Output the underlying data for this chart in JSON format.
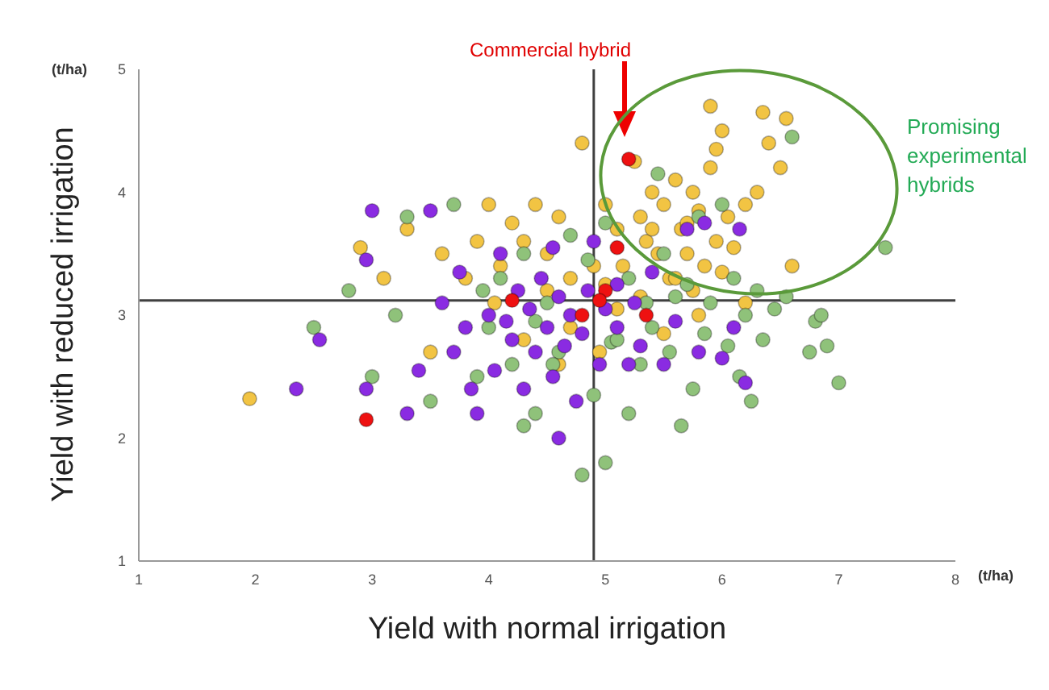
{
  "chart_data": {
    "type": "scatter",
    "xlabel": "Yield with normal irrigation",
    "ylabel": "Yield with reduced irrigation",
    "annotations": [
      "(t/ha)",
      "(t/ha)",
      "Commercial hybrid",
      "Promising experimental hybrids"
    ],
    "xlim": [
      1,
      8
    ],
    "xticks": [
      1,
      2,
      3,
      4,
      5,
      6,
      7,
      8
    ],
    "ylim": [
      1,
      5
    ],
    "yticks": [
      1,
      2,
      3,
      4,
      5
    ],
    "grid": false,
    "legend": false,
    "marker": "circle",
    "ref_lines": [
      {
        "axis": "x",
        "value": 4.9,
        "color": "#404040"
      },
      {
        "axis": "y",
        "value": 3.12,
        "color": "#404040"
      }
    ],
    "series": [
      {
        "color": "#f2c443",
        "x": [
          1.95,
          2.9,
          3.1,
          3.3,
          3.6,
          3.8,
          3.9,
          4.0,
          4.1,
          4.2,
          4.3,
          4.4,
          4.5,
          4.6,
          4.7,
          4.8,
          4.9,
          5.0,
          5.1,
          5.3,
          5.35,
          5.4,
          5.45,
          5.5,
          5.55,
          5.6,
          5.65,
          5.7,
          5.75,
          5.8,
          5.85,
          5.9,
          5.95,
          6.0,
          6.05,
          6.1,
          6.2,
          6.3,
          6.35,
          6.55,
          6.5,
          6.6,
          6.2,
          5.9,
          5.95,
          5.6,
          5.3,
          5.0,
          4.7,
          4.5,
          4.3,
          4.6,
          5.8,
          5.5,
          5.25,
          5.4,
          5.7,
          5.75,
          5.15,
          4.95,
          3.5,
          4.05,
          6.0,
          6.4,
          5.1
        ],
        "values": [
          2.32,
          3.55,
          3.3,
          3.7,
          3.5,
          3.3,
          3.6,
          3.9,
          3.4,
          3.75,
          3.6,
          3.9,
          3.5,
          3.8,
          3.3,
          4.4,
          3.4,
          3.9,
          3.7,
          3.8,
          3.6,
          4.0,
          3.5,
          3.9,
          3.3,
          4.1,
          3.7,
          3.5,
          4.0,
          3.85,
          3.4,
          4.2,
          3.6,
          4.5,
          3.8,
          3.55,
          3.9,
          4.0,
          4.65,
          4.6,
          4.2,
          3.4,
          3.1,
          4.7,
          4.35,
          3.3,
          3.15,
          3.25,
          2.9,
          3.2,
          2.8,
          2.6,
          3.0,
          2.85,
          4.25,
          3.7,
          3.75,
          3.2,
          3.4,
          2.7,
          2.7,
          3.1,
          3.35,
          4.4,
          3.05
        ]
      },
      {
        "color": "#8fc27a",
        "x": [
          2.5,
          2.8,
          3.0,
          3.2,
          3.3,
          3.5,
          3.7,
          3.9,
          4.0,
          4.1,
          4.2,
          4.3,
          4.4,
          4.5,
          4.6,
          4.7,
          4.8,
          4.9,
          5.0,
          5.05,
          5.1,
          5.2,
          5.3,
          5.35,
          5.4,
          5.5,
          5.55,
          5.6,
          5.7,
          5.75,
          5.8,
          5.85,
          5.9,
          6.0,
          6.05,
          6.1,
          6.15,
          6.2,
          6.3,
          6.35,
          6.45,
          6.55,
          6.6,
          6.75,
          6.8,
          6.85,
          6.9,
          7.4,
          7.0,
          5.65,
          4.55,
          5.45,
          4.85,
          3.95,
          5.2,
          4.4,
          6.25,
          5.0,
          4.3
        ],
        "values": [
          2.9,
          3.2,
          2.5,
          3.0,
          3.8,
          2.3,
          3.9,
          2.5,
          2.9,
          3.3,
          2.6,
          3.5,
          2.2,
          3.1,
          2.7,
          3.65,
          1.7,
          2.35,
          1.8,
          2.78,
          2.8,
          3.3,
          2.6,
          3.1,
          2.9,
          3.5,
          2.7,
          3.15,
          3.25,
          2.4,
          3.8,
          2.85,
          3.1,
          3.9,
          2.75,
          3.3,
          2.5,
          3.0,
          3.2,
          2.8,
          3.05,
          3.15,
          4.45,
          2.7,
          2.95,
          3.0,
          2.75,
          3.55,
          2.45,
          2.1,
          2.6,
          4.15,
          3.45,
          3.2,
          2.2,
          2.95,
          2.3,
          3.75,
          2.1
        ]
      },
      {
        "color": "#8a2be2",
        "x": [
          2.35,
          2.55,
          2.95,
          2.95,
          3.0,
          3.3,
          3.5,
          3.6,
          3.7,
          3.8,
          3.9,
          4.0,
          4.05,
          4.1,
          4.2,
          4.25,
          4.3,
          4.35,
          4.4,
          4.45,
          4.5,
          4.55,
          4.6,
          4.65,
          4.7,
          4.75,
          4.8,
          4.85,
          4.9,
          4.95,
          5.0,
          5.1,
          5.2,
          5.25,
          5.3,
          5.4,
          5.5,
          5.6,
          5.7,
          5.8,
          5.85,
          6.0,
          6.1,
          6.15,
          6.2,
          3.4,
          3.85,
          4.6,
          4.15,
          4.55,
          5.1,
          3.75
        ],
        "values": [
          2.4,
          2.8,
          2.4,
          3.45,
          3.85,
          2.2,
          3.85,
          3.1,
          2.7,
          2.9,
          2.2,
          3.0,
          2.55,
          3.5,
          2.8,
          3.2,
          2.4,
          3.05,
          2.7,
          3.3,
          2.9,
          2.5,
          3.15,
          2.75,
          3.0,
          2.3,
          2.85,
          3.2,
          3.6,
          2.6,
          3.05,
          2.9,
          2.6,
          3.1,
          2.75,
          3.35,
          2.6,
          2.95,
          3.7,
          2.7,
          3.75,
          2.65,
          2.9,
          3.7,
          2.45,
          2.55,
          2.4,
          2.0,
          2.95,
          3.55,
          3.25,
          3.35
        ]
      },
      {
        "color": "#ee1111",
        "x": [
          5.2,
          2.95,
          4.2,
          4.8,
          5.0,
          5.1,
          5.35,
          4.95
        ],
        "values": [
          4.27,
          2.15,
          3.12,
          3.0,
          3.2,
          3.55,
          3.0,
          3.12
        ]
      }
    ]
  }
}
